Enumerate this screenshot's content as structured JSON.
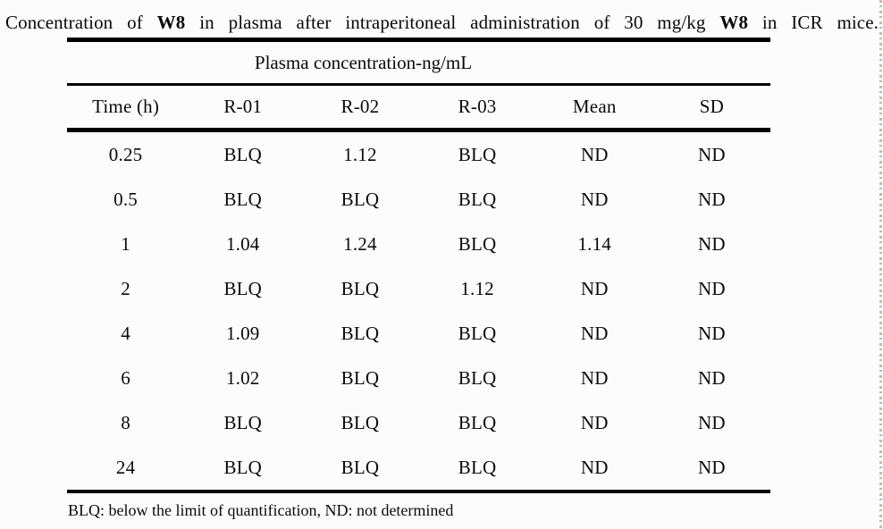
{
  "page": {
    "background_color": "#fcfcfc",
    "ink_color": "#0a0a0a",
    "artifact_color": "#be784b"
  },
  "title": {
    "segments": [
      {
        "text": "Concentration of ",
        "bold": false
      },
      {
        "text": "W8",
        "bold": true
      },
      {
        "text": " in plasma after intraperitoneal administration of 30 mg/kg ",
        "bold": false
      },
      {
        "text": "W8",
        "bold": true
      },
      {
        "text": " in ICR mice.",
        "bold": false
      }
    ]
  },
  "table": {
    "span_header": "Plasma concentration-ng/mL",
    "columns": [
      "Time (h)",
      "R-01",
      "R-02",
      "R-03",
      "Mean",
      "SD"
    ],
    "rows": [
      [
        "0.25",
        "BLQ",
        "1.12",
        "BLQ",
        "ND",
        "ND"
      ],
      [
        "0.5",
        "BLQ",
        "BLQ",
        "BLQ",
        "ND",
        "ND"
      ],
      [
        "1",
        "1.04",
        "1.24",
        "BLQ",
        "1.14",
        "ND"
      ],
      [
        "2",
        "BLQ",
        "BLQ",
        "1.12",
        "ND",
        "ND"
      ],
      [
        "4",
        "1.09",
        "BLQ",
        "BLQ",
        "ND",
        "ND"
      ],
      [
        "6",
        "1.02",
        "BLQ",
        "BLQ",
        "ND",
        "ND"
      ],
      [
        "8",
        "BLQ",
        "BLQ",
        "BLQ",
        "ND",
        "ND"
      ],
      [
        "24",
        "BLQ",
        "BLQ",
        "BLQ",
        "ND",
        "ND"
      ]
    ]
  },
  "footnote": "BLQ: below the limit of quantification, ND: not determined"
}
